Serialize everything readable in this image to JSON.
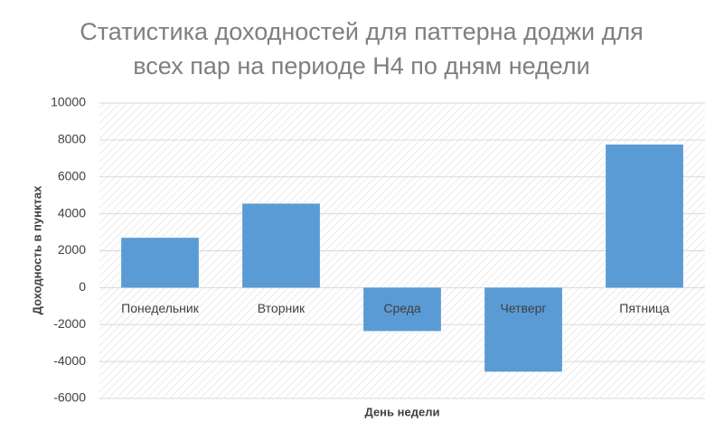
{
  "chart_data": {
    "type": "bar",
    "title": "Статистика доходностей для паттерна доджи для всех пар на периоде H4 по дням недели",
    "x_label": "День недели",
    "y_label": "Доходность в пунктах",
    "categories": [
      "Понедельник",
      "Вторник",
      "Среда",
      "Четверг",
      "Пятница"
    ],
    "values": [
      2700,
      4550,
      -2350,
      -4550,
      7750
    ],
    "color": "#5b9bd5",
    "ylim": [
      -6000,
      10000
    ],
    "yticks": [
      -6000,
      -4000,
      -2000,
      0,
      2000,
      4000,
      6000,
      8000,
      10000
    ],
    "grid": true
  }
}
